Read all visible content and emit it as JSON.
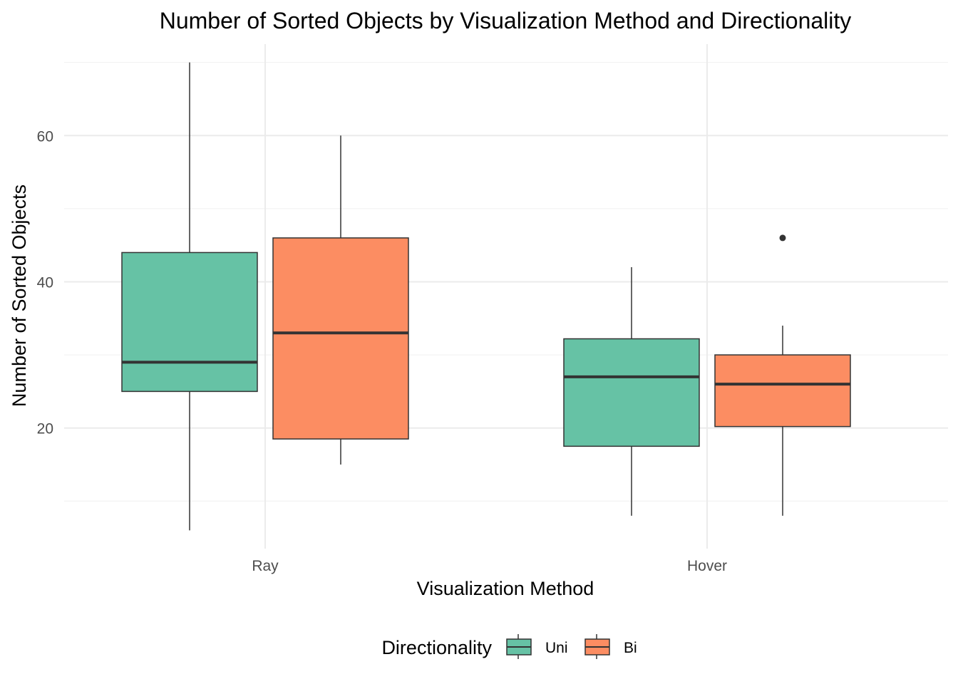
{
  "chart_data": {
    "type": "boxplot",
    "title": "Number of Sorted Objects by Visualization Method and Directionality",
    "xlabel": "Visualization Method",
    "ylabel": "Number of Sorted Objects",
    "categories": [
      "Ray",
      "Hover"
    ],
    "y_ticks": [
      20,
      40,
      60
    ],
    "y_minor_ticks": [
      10,
      30,
      50,
      70
    ],
    "ylim": [
      3.5,
      72.5
    ],
    "grid": true,
    "legend": {
      "title": "Directionality",
      "position": "bottom",
      "entries": [
        "Uni",
        "Bi"
      ]
    },
    "series": [
      {
        "name": "Uni",
        "color": "#66c2a5",
        "boxes": [
          {
            "category": "Ray",
            "min": 6,
            "q1": 25,
            "median": 29,
            "q3": 44,
            "max": 70,
            "outliers": []
          },
          {
            "category": "Hover",
            "min": 8,
            "q1": 17.5,
            "median": 27,
            "q3": 32.2,
            "max": 42,
            "outliers": []
          }
        ]
      },
      {
        "name": "Bi",
        "color": "#fc8d62",
        "boxes": [
          {
            "category": "Ray",
            "min": 15,
            "q1": 18.5,
            "median": 33,
            "q3": 46,
            "max": 60,
            "outliers": []
          },
          {
            "category": "Hover",
            "min": 8,
            "q1": 20.2,
            "median": 26,
            "q3": 30,
            "max": 34,
            "outliers": [
              46
            ]
          }
        ]
      }
    ]
  }
}
